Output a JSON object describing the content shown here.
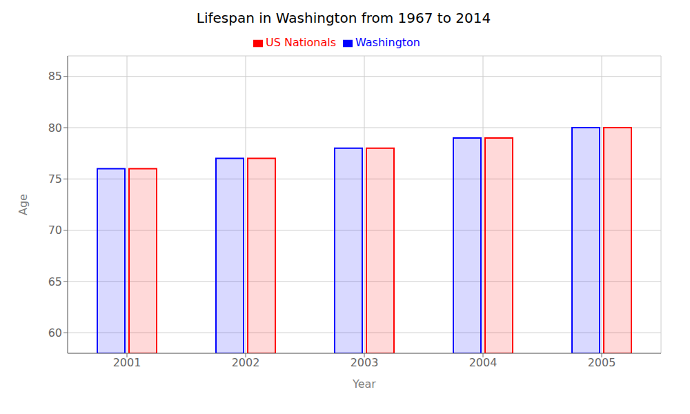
{
  "chart_data": {
    "type": "bar",
    "title": "Lifespan in Washington from 1967 to 2014",
    "x_label": "Year",
    "y_label": "Age",
    "categories": [
      "2001",
      "2002",
      "2003",
      "2004",
      "2005"
    ],
    "series": [
      {
        "name": "Washington",
        "color": "#0000ff",
        "values": [
          76,
          77,
          78,
          79,
          80
        ]
      },
      {
        "name": "US Nationals",
        "color": "#ff0000",
        "values": [
          76,
          77,
          78,
          79,
          80
        ]
      }
    ],
    "ylim": [
      58,
      87
    ],
    "yticks": [
      60,
      65,
      70,
      75,
      80,
      85
    ],
    "grid": true,
    "legend": "top"
  }
}
